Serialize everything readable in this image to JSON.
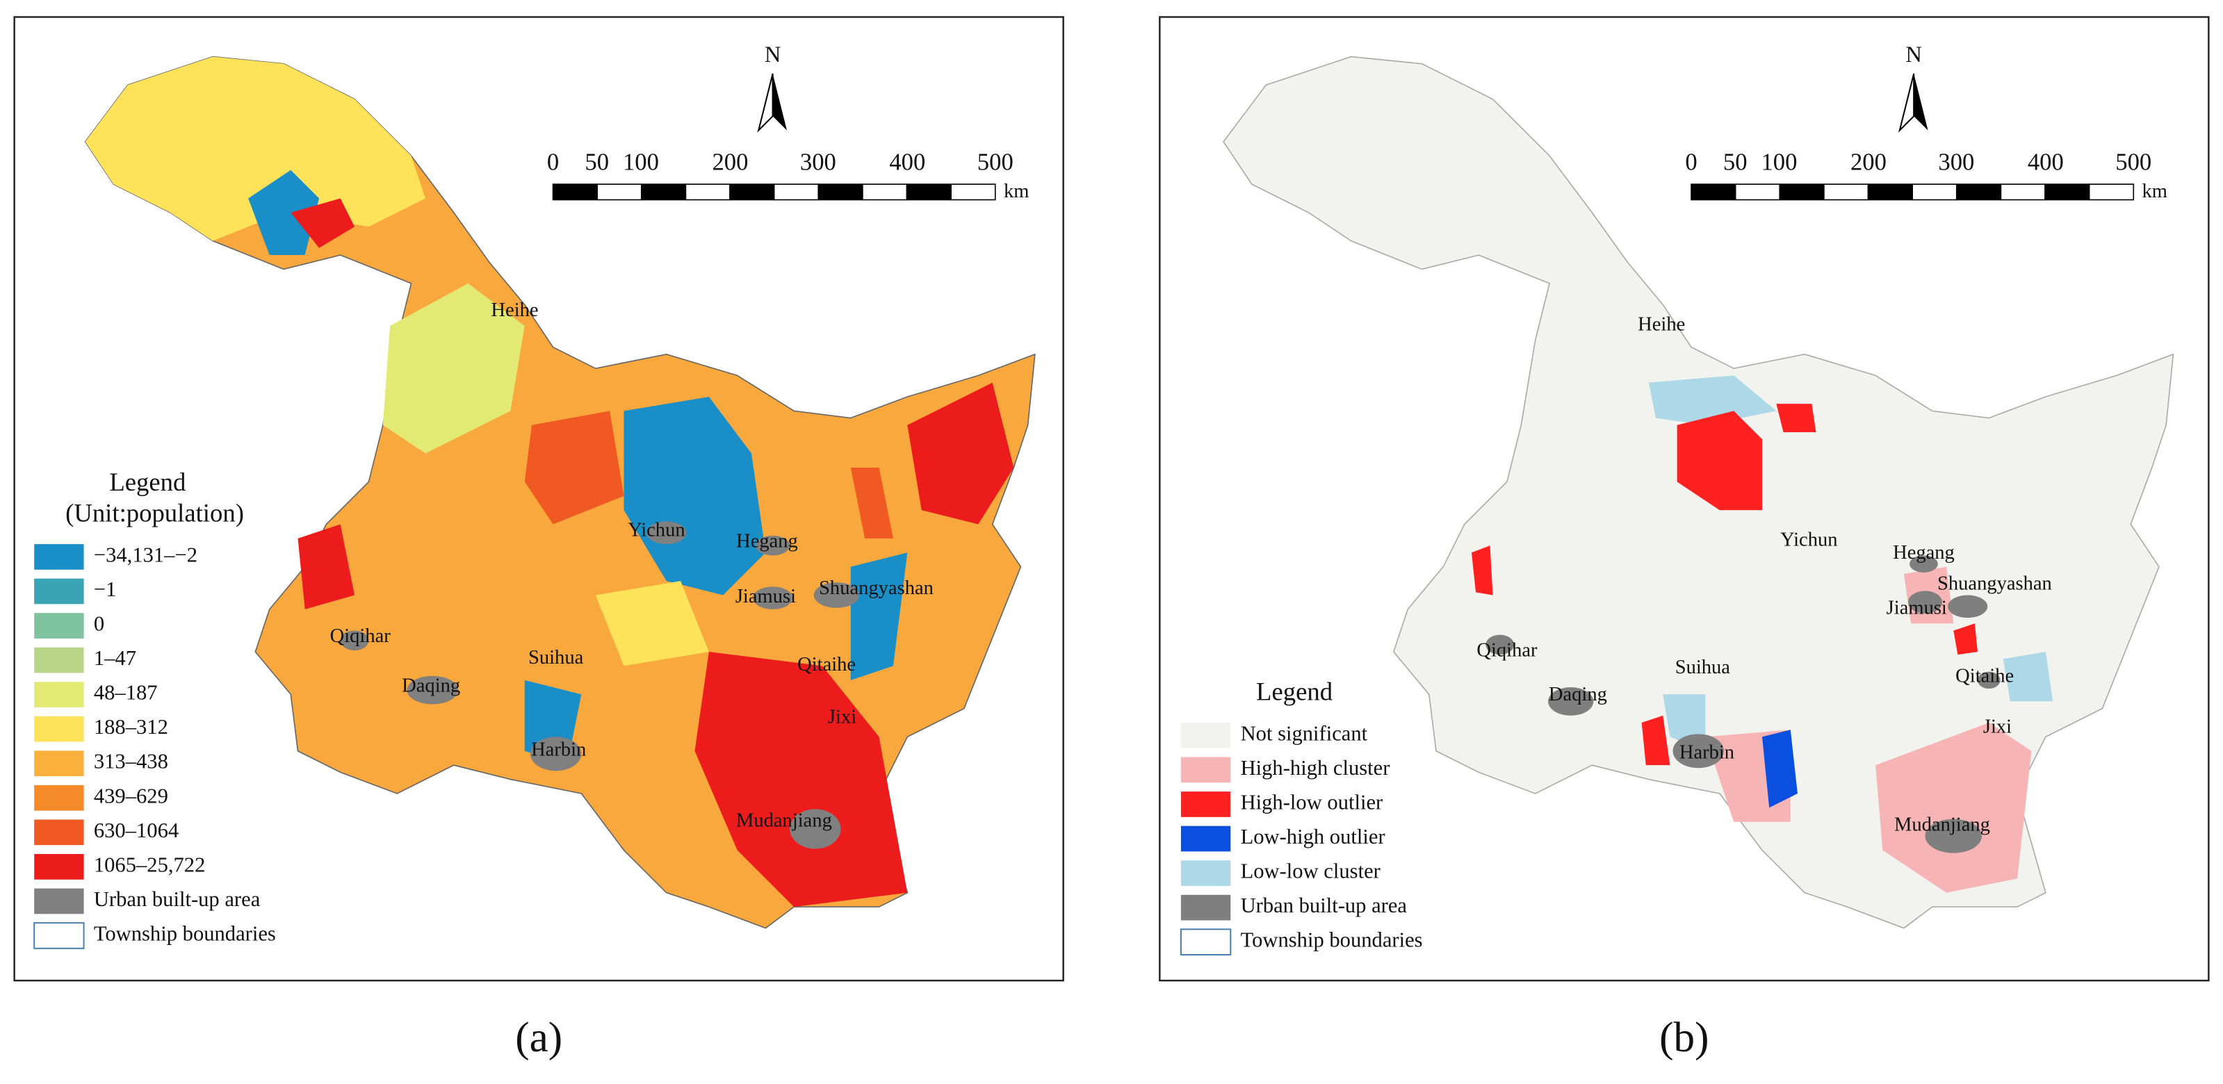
{
  "panels": [
    {
      "label": "(a)",
      "north": "N",
      "scale_bar": {
        "ticks": [
          "0",
          "50",
          "100",
          "200",
          "300",
          "400",
          "500"
        ],
        "unit": "km"
      },
      "legend": {
        "title": "Legend",
        "subtitle": "(Unit:population)",
        "items": [
          {
            "label": "−34,131–−2",
            "color": "#1a8fc7"
          },
          {
            "label": "−1",
            "color": "#3aa3b4"
          },
          {
            "label": "0",
            "color": "#7fc2a0"
          },
          {
            "label": "1–47",
            "color": "#b9d58a"
          },
          {
            "label": "48–187",
            "color": "#e3ea73"
          },
          {
            "label": "188–312",
            "color": "#fde25a"
          },
          {
            "label": "313–438",
            "color": "#fbb03b"
          },
          {
            "label": "439–629",
            "color": "#f58a2a"
          },
          {
            "label": "630–1064",
            "color": "#f05a22"
          },
          {
            "label": "1065–25,722",
            "color": "#ed1c1c"
          },
          {
            "label": "Urban built-up area",
            "color": "#808080"
          },
          {
            "label": "Township boundaries",
            "color": "#ffffff"
          }
        ]
      },
      "cities": [
        "Heihe",
        "Yichun",
        "Hegang",
        "Jiamusi",
        "Shuangyashan",
        "Qiqihar",
        "Suihua",
        "Daqing",
        "Qitaihe",
        "Harbin",
        "Jixi",
        "Mudanjiang"
      ]
    },
    {
      "label": "(b)",
      "north": "N",
      "scale_bar": {
        "ticks": [
          "0",
          "50",
          "100",
          "200",
          "300",
          "400",
          "500"
        ],
        "unit": "km"
      },
      "legend": {
        "title": "Legend",
        "items": [
          {
            "label": "Not significant",
            "color": "#f2f2ee"
          },
          {
            "label": "High-high cluster",
            "color": "#f7b4b4"
          },
          {
            "label": "High-low outlier",
            "color": "#ff2020"
          },
          {
            "label": "Low-high outlier",
            "color": "#0a4fe0"
          },
          {
            "label": "Low-low cluster",
            "color": "#acd8e8"
          },
          {
            "label": "Urban built-up area",
            "color": "#7f7f7f"
          },
          {
            "label": "Township boundaries",
            "color": "#ffffff"
          }
        ]
      },
      "cities": [
        "Heihe",
        "Yichun",
        "Hegang",
        "Jiamusi",
        "Shuangyashan",
        "Qiqihar",
        "Suihua",
        "Daqing",
        "Qitaihe",
        "Harbin",
        "Jixi",
        "Mudanjiang"
      ]
    }
  ]
}
